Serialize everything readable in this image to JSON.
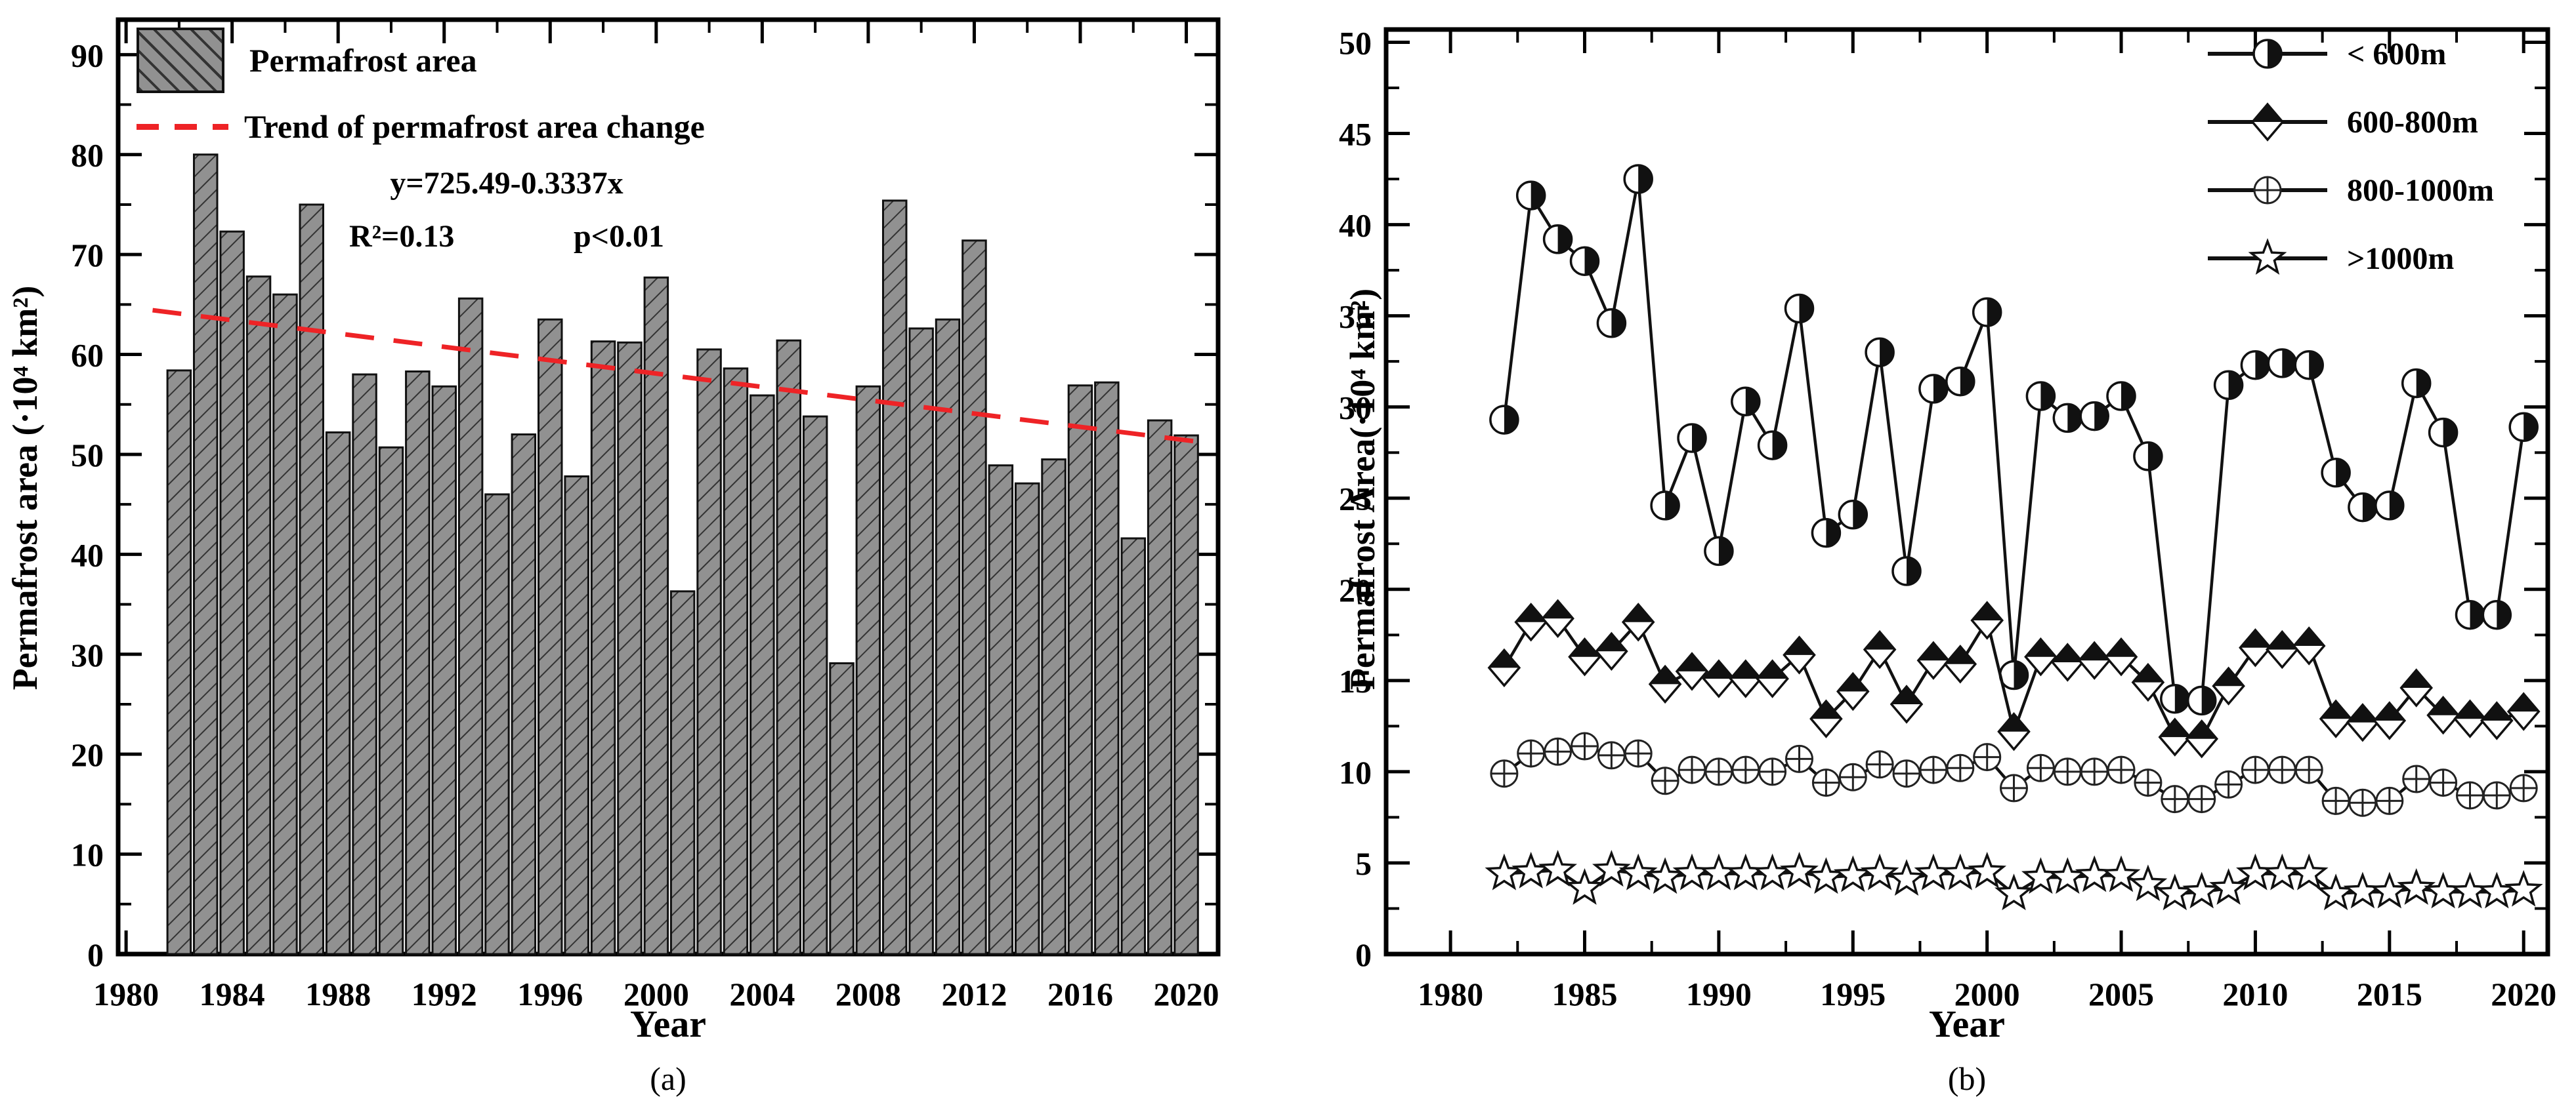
{
  "figure": {
    "background": "#ffffff"
  },
  "panel_a": {
    "caption": "(a)",
    "xlabel": "Year",
    "ylabel": "Permafrost area (·10⁴ km²)",
    "legend": [
      {
        "label": "Permafrost area",
        "swatch": "hatched-bar"
      },
      {
        "label": "Trend of permafrost area change",
        "swatch": "red-dashed-line"
      }
    ],
    "equation": {
      "line1": "y=725.49-0.3337x",
      "r2": "R²=0.13",
      "p": "p<0.01"
    }
  },
  "panel_b": {
    "caption": "(b)",
    "xlabel": "Year",
    "ylabel": "Permafrost Area(·10⁴ km²)",
    "legend": [
      {
        "label": "< 600m",
        "marker": "half-filled-circle"
      },
      {
        "label": "600-800m",
        "marker": "half-filled-diamond"
      },
      {
        "label": "800-1000m",
        "marker": "circle-plus"
      },
      {
        "label": ">1000m",
        "marker": "open-star"
      }
    ]
  },
  "chart_data": [
    {
      "id": "a",
      "type": "bar",
      "title": "",
      "xlabel": "Year",
      "ylabel": "Permafrost area (·10⁴ km²)",
      "xlim": [
        1979.7,
        2021.2
      ],
      "ylim": [
        0,
        93.5
      ],
      "xticks": {
        "major_start": 1980,
        "major_end": 2020,
        "major_step": 4,
        "minor_step": 2
      },
      "yticks": {
        "major_start": 0,
        "major_end": 90,
        "major_step": 10,
        "minor_step": 5
      },
      "grid": false,
      "legend_position": "top-left",
      "bar_style": {
        "width_years": 0.88,
        "fill": "#919191",
        "hatch_color": "#333333",
        "edge_color": "#111111"
      },
      "years": [
        1982,
        1983,
        1984,
        1985,
        1986,
        1987,
        1988,
        1989,
        1990,
        1991,
        1992,
        1993,
        1994,
        1995,
        1996,
        1997,
        1998,
        1999,
        2000,
        2001,
        2002,
        2003,
        2004,
        2005,
        2006,
        2007,
        2008,
        2009,
        2010,
        2011,
        2012,
        2013,
        2014,
        2015,
        2016,
        2017,
        2018,
        2019,
        2020
      ],
      "values": [
        58.4,
        80.0,
        72.3,
        67.8,
        66.0,
        75.0,
        52.2,
        58.0,
        50.7,
        58.3,
        56.8,
        65.6,
        46.0,
        52.0,
        63.5,
        47.8,
        61.3,
        61.2,
        67.7,
        36.3,
        60.5,
        58.6,
        55.9,
        61.4,
        53.8,
        29.1,
        56.8,
        75.4,
        62.6,
        63.5,
        71.4,
        48.9,
        47.1,
        49.5,
        56.9,
        57.2,
        41.6,
        53.4,
        51.9
      ],
      "trend_line": {
        "label": "Trend of permafrost area change",
        "equation": "y=725.49-0.3337x",
        "intercept": 725.49,
        "slope": -0.3337,
        "r_squared": "R²=0.13",
        "p_value": "p<0.01",
        "x_start": 1981.0,
        "x_end": 2020.7,
        "color": "#ee2326",
        "dash": [
          44,
          30
        ]
      }
    },
    {
      "id": "b",
      "type": "line",
      "title": "",
      "xlabel": "Year",
      "ylabel": "Permafrost Area(·10⁴ km²)",
      "xlim": [
        1977.6,
        2020.9
      ],
      "ylim": [
        0,
        50.7
      ],
      "xticks": {
        "major_start": 1980,
        "major_end": 2020,
        "major_step": 5,
        "minor_step": 2.5
      },
      "yticks": {
        "major_start": 0,
        "major_end": 50,
        "major_step": 5,
        "minor_step": 2.5
      },
      "grid": false,
      "legend_position": "top-right",
      "line_color": "#111111",
      "x": [
        1982,
        1983,
        1984,
        1985,
        1986,
        1987,
        1988,
        1989,
        1990,
        1991,
        1992,
        1993,
        1994,
        1995,
        1996,
        1997,
        1998,
        1999,
        2000,
        2001,
        2002,
        2003,
        2004,
        2005,
        2006,
        2007,
        2008,
        2009,
        2010,
        2011,
        2012,
        2013,
        2014,
        2015,
        2016,
        2017,
        2018,
        2019,
        2020
      ],
      "series": [
        {
          "name": "< 600m",
          "marker": "half-filled-circle",
          "values": [
            29.3,
            41.6,
            39.2,
            38.0,
            34.6,
            42.5,
            24.6,
            28.3,
            22.1,
            30.3,
            27.9,
            35.4,
            23.1,
            24.1,
            33.0,
            21.0,
            31.0,
            31.4,
            35.2,
            15.3,
            30.6,
            29.4,
            29.5,
            30.6,
            27.3,
            14.0,
            13.9,
            31.2,
            32.3,
            32.4,
            32.3,
            26.4,
            24.5,
            24.6,
            31.3,
            28.6,
            18.6,
            18.6,
            28.9
          ]
        },
        {
          "name": "600-800m",
          "marker": "half-filled-diamond",
          "values": [
            15.7,
            18.2,
            18.4,
            16.3,
            16.6,
            18.2,
            14.8,
            15.5,
            15.1,
            15.1,
            15.1,
            16.4,
            12.9,
            14.4,
            16.7,
            13.7,
            16.1,
            15.9,
            18.3,
            12.2,
            16.3,
            16.0,
            16.1,
            16.3,
            14.9,
            11.9,
            11.8,
            14.7,
            16.8,
            16.7,
            16.9,
            12.9,
            12.7,
            12.8,
            14.6,
            13.1,
            12.9,
            12.8,
            13.3
          ]
        },
        {
          "name": "800-1000m",
          "marker": "circle-plus",
          "values": [
            9.9,
            11.0,
            11.1,
            11.4,
            10.9,
            11.0,
            9.5,
            10.1,
            10.0,
            10.1,
            10.0,
            10.7,
            9.4,
            9.7,
            10.4,
            9.9,
            10.1,
            10.2,
            10.8,
            9.1,
            10.2,
            10.0,
            10.0,
            10.1,
            9.4,
            8.5,
            8.5,
            9.3,
            10.1,
            10.1,
            10.1,
            8.4,
            8.3,
            8.4,
            9.6,
            9.4,
            8.7,
            8.7,
            9.1
          ]
        },
        {
          "name": ">1000m",
          "marker": "open-star",
          "values": [
            4.4,
            4.5,
            4.6,
            3.6,
            4.6,
            4.4,
            4.2,
            4.4,
            4.4,
            4.4,
            4.4,
            4.5,
            4.2,
            4.3,
            4.4,
            4.1,
            4.4,
            4.4,
            4.5,
            3.3,
            4.2,
            4.2,
            4.3,
            4.3,
            3.8,
            3.3,
            3.4,
            3.6,
            4.4,
            4.4,
            4.4,
            3.3,
            3.4,
            3.4,
            3.6,
            3.4,
            3.4,
            3.4,
            3.5
          ]
        }
      ]
    }
  ]
}
